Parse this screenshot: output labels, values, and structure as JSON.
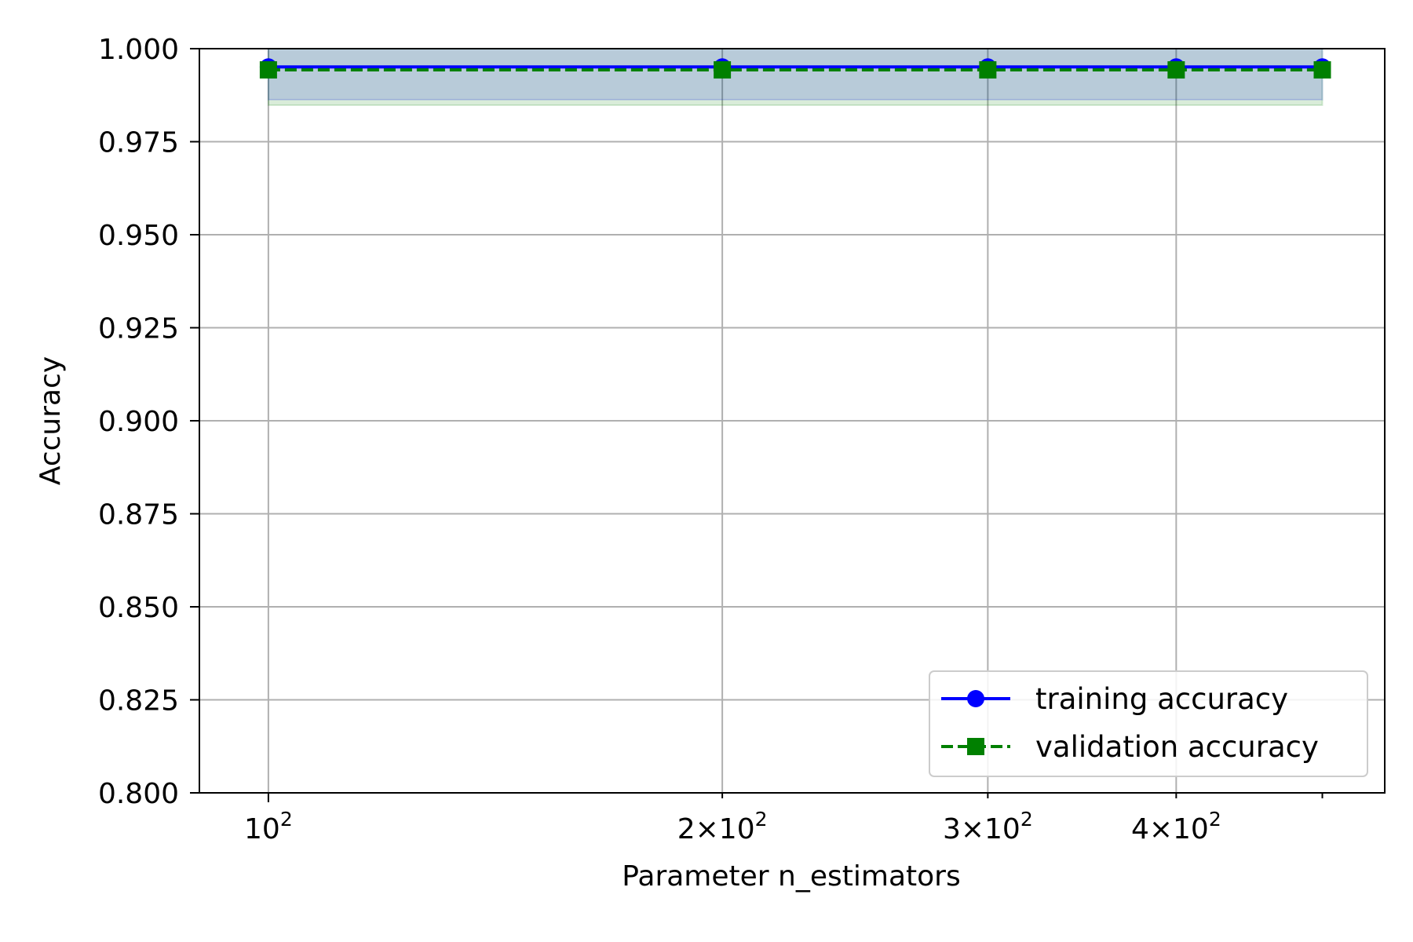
{
  "chart_data": {
    "type": "line",
    "xlabel": "Parameter n_estimators",
    "ylabel": "Accuracy",
    "x_scale": "log",
    "xlim": [
      90,
      550
    ],
    "ylim": [
      0.8,
      1.0
    ],
    "x": [
      100,
      200,
      300,
      400,
      500
    ],
    "x_ticks": [
      {
        "value": 100,
        "label_base": "10",
        "label_exp": "2",
        "label_prefix": ""
      },
      {
        "value": 200,
        "label_base": "10",
        "label_exp": "2",
        "label_prefix": "2×"
      },
      {
        "value": 300,
        "label_base": "10",
        "label_exp": "2",
        "label_prefix": "3×"
      },
      {
        "value": 400,
        "label_base": "10",
        "label_exp": "2",
        "label_prefix": "4×"
      },
      {
        "value": 500,
        "label_base": "",
        "label_exp": "",
        "label_prefix": ""
      }
    ],
    "y_ticks": [
      "1.000",
      "0.975",
      "0.950",
      "0.925",
      "0.900",
      "0.875",
      "0.850",
      "0.825",
      "0.800"
    ],
    "grid": true,
    "legend": "lower-right",
    "series": [
      {
        "name": "training accuracy",
        "color": "#0000ff",
        "marker": "circle",
        "linestyle": "solid",
        "values": [
          0.9951,
          0.9951,
          0.9951,
          0.9951,
          0.9951
        ],
        "band_lower": [
          0.9863,
          0.9863,
          0.9863,
          0.9863,
          0.9863
        ],
        "band_upper": [
          1.0039,
          1.0039,
          1.0039,
          1.0039,
          1.0039
        ],
        "band_color": "#0000ff"
      },
      {
        "name": "validation accuracy",
        "color": "#008000",
        "marker": "square",
        "linestyle": "dashed",
        "values": [
          0.9943,
          0.9943,
          0.9943,
          0.9943,
          0.9943
        ],
        "band_lower": [
          0.9848,
          0.9848,
          0.9848,
          0.9848,
          0.9848
        ],
        "band_upper": [
          1.0038,
          1.0038,
          1.0038,
          1.0038,
          1.0038
        ],
        "band_color": "#008000"
      }
    ]
  }
}
